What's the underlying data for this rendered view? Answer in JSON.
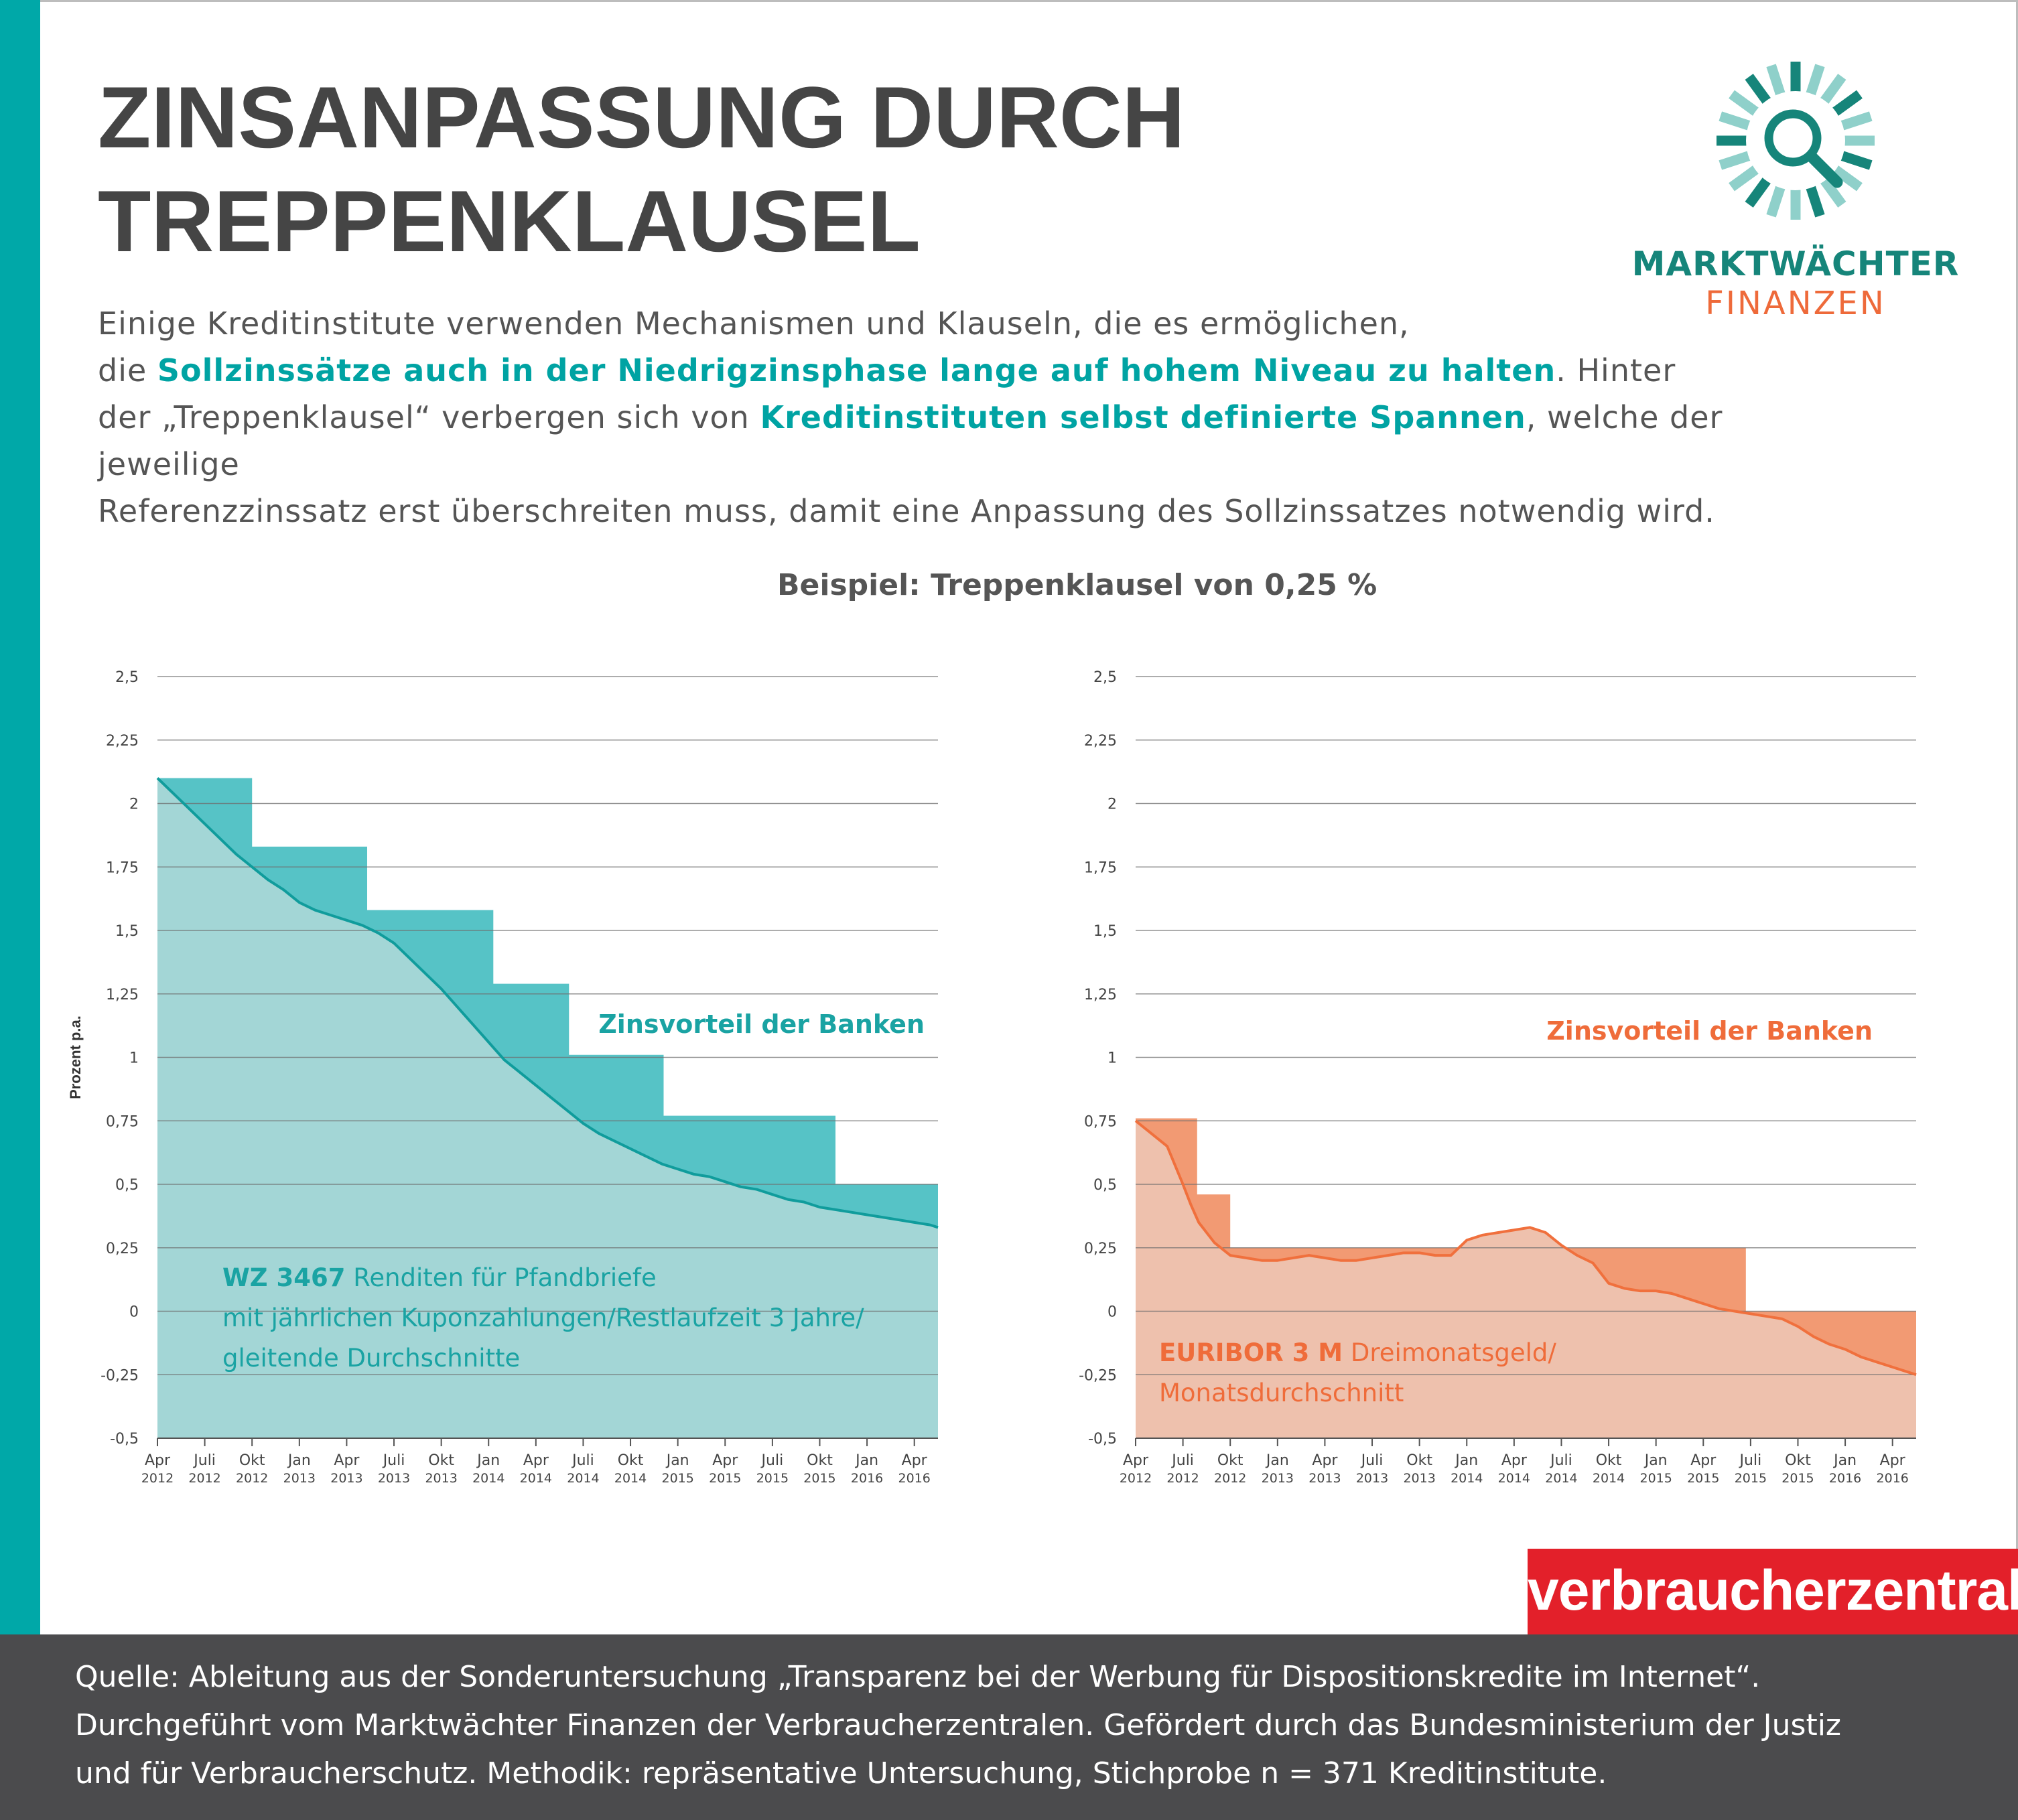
{
  "title": {
    "line1": "ZINSANPASSUNG DURCH",
    "line2": "TREPPENKLAUSEL"
  },
  "logo": {
    "line1": "MARKTWÄCHTER",
    "line2": "FINANZEN",
    "icon": "magnifier-sun-icon",
    "colors": {
      "teal": "#16857a",
      "light_teal": "#8fd0ca",
      "orange": "#ee6a3a"
    }
  },
  "intro": {
    "l1": "Einige Kreditinstitute verwenden Mechanismen und Klauseln, die es ermöglichen,",
    "l2_a": "die ",
    "l2_hl": "Sollzinssätze auch in der Niedrigzinsphase lange auf hohem Niveau zu halten",
    "l2_b": ". Hinter",
    "l3_a": "der „Treppenklausel“ verbergen sich von ",
    "l3_hl": "Kreditinstituten selbst definierte Spannen",
    "l3_b": ", welche der jeweilige",
    "l4": "Referenzzinssatz erst überschreiten muss, damit eine Anpassung des Sollzinssatzes notwendig wird."
  },
  "example_heading": "Beispiel: Treppenklausel von 0,25 %",
  "chart_data": [
    {
      "type": "area",
      "ylabel": "Prozent p.a.",
      "ylim": [
        -0.5,
        2.5
      ],
      "yticks": [
        -0.5,
        -0.25,
        0,
        0.25,
        0.5,
        0.75,
        1,
        1.25,
        1.5,
        1.75,
        2,
        2.25,
        2.5
      ],
      "ytick_labels": [
        "-0,5",
        "-0,25",
        "0",
        "0,25",
        "0,5",
        "0,75",
        "1",
        "1,25",
        "1,5",
        "1,75",
        "2",
        "2,25",
        "2,5"
      ],
      "xlim": [
        0,
        49.5
      ],
      "x_ticks": [
        0,
        3,
        6,
        9,
        12,
        15,
        18,
        21,
        24,
        27,
        30,
        33,
        36,
        39,
        42,
        45,
        48
      ],
      "x_tick_months": [
        "Apr",
        "Juli",
        "Okt",
        "Jan",
        "Apr",
        "Juli",
        "Okt",
        "Jan",
        "Apr",
        "Juli",
        "Okt",
        "Jan",
        "Apr",
        "Juli",
        "Okt",
        "Jan",
        "Apr"
      ],
      "x_tick_years": [
        "2012",
        "2012",
        "2012",
        "2013",
        "2013",
        "2013",
        "2013",
        "2014",
        "2014",
        "2014",
        "2014",
        "2015",
        "2015",
        "2015",
        "2015",
        "2016",
        "2016"
      ],
      "annotation": "Zinsvorteil der Banken",
      "series_label_bold": "WZ 3467",
      "series_label_lines": [
        " Renditen für Pfandbriefe",
        "mit jährlichen Kuponzahlungen/Restlaufzeit 3 Jahre/",
        "gleitende Durchschnitte"
      ],
      "colors": {
        "line": "#109c9c",
        "area": "#a3d6d6",
        "step": "#56c3c6",
        "text": "#1aa3a3"
      },
      "series": [
        {
          "name": "WZ 3467",
          "x": [
            0,
            1,
            2,
            3,
            4,
            5,
            6,
            7,
            8,
            9,
            10,
            11,
            12,
            13,
            14,
            15,
            16,
            17,
            18,
            19,
            20,
            21,
            22,
            23,
            24,
            25,
            26,
            27,
            28,
            29,
            30,
            31,
            32,
            33,
            34,
            35,
            36,
            37,
            38,
            39,
            40,
            41,
            42,
            43,
            44,
            45,
            46,
            47,
            48,
            49,
            49.5
          ],
          "values": [
            2.1,
            2.04,
            1.98,
            1.92,
            1.86,
            1.8,
            1.75,
            1.7,
            1.66,
            1.61,
            1.58,
            1.56,
            1.54,
            1.52,
            1.49,
            1.45,
            1.39,
            1.33,
            1.27,
            1.2,
            1.13,
            1.06,
            0.99,
            0.94,
            0.89,
            0.84,
            0.79,
            0.74,
            0.7,
            0.67,
            0.64,
            0.61,
            0.58,
            0.56,
            0.54,
            0.53,
            0.51,
            0.49,
            0.48,
            0.46,
            0.44,
            0.43,
            0.41,
            0.4,
            0.39,
            0.38,
            0.37,
            0.36,
            0.35,
            0.34,
            0.33
          ]
        },
        {
          "name": "Treppenklausel",
          "steps": [
            {
              "from": 0,
              "to": 6,
              "value": 2.1
            },
            {
              "from": 6,
              "to": 13.3,
              "value": 1.83
            },
            {
              "from": 13.3,
              "to": 21.3,
              "value": 1.58
            },
            {
              "from": 21.3,
              "to": 26.1,
              "value": 1.29
            },
            {
              "from": 26.1,
              "to": 32.1,
              "value": 1.01
            },
            {
              "from": 32.1,
              "to": 43,
              "value": 0.77
            },
            {
              "from": 43,
              "to": 49.5,
              "value": 0.5
            }
          ]
        }
      ]
    },
    {
      "type": "area",
      "ylabel": "",
      "ylim": [
        -0.5,
        2.5
      ],
      "yticks": [
        -0.5,
        -0.25,
        0,
        0.25,
        0.5,
        0.75,
        1,
        1.25,
        1.5,
        1.75,
        2,
        2.25,
        2.5
      ],
      "ytick_labels": [
        "-0,5",
        "-0,25",
        "0",
        "0,25",
        "0,5",
        "0,75",
        "1",
        "1,25",
        "1,5",
        "1,75",
        "2",
        "2,25",
        "2,5"
      ],
      "xlim": [
        0,
        49.5
      ],
      "x_ticks": [
        0,
        3,
        6,
        9,
        12,
        15,
        18,
        21,
        24,
        27,
        30,
        33,
        36,
        39,
        42,
        45,
        48
      ],
      "x_tick_months": [
        "Apr",
        "Juli",
        "Okt",
        "Jan",
        "Apr",
        "Juli",
        "Okt",
        "Jan",
        "Apr",
        "Juli",
        "Okt",
        "Jan",
        "Apr",
        "Juli",
        "Okt",
        "Jan",
        "Apr"
      ],
      "x_tick_years": [
        "2012",
        "2012",
        "2012",
        "2013",
        "2013",
        "2013",
        "2013",
        "2014",
        "2014",
        "2014",
        "2014",
        "2015",
        "2015",
        "2015",
        "2015",
        "2016",
        "2016"
      ],
      "annotation": "Zinsvorteil der Banken",
      "series_label_bold": "EURIBOR 3 M",
      "series_label_lines": [
        " Dreimonatsgeld/",
        "Monatsdurchschnitt"
      ],
      "colors": {
        "line": "#f0703d",
        "area": "#eec1ad",
        "step": "#f29a73",
        "text": "#ef6c3a"
      },
      "series": [
        {
          "name": "EURIBOR 3 M",
          "x": [
            0,
            1,
            2,
            3,
            3.5,
            4,
            5,
            6,
            7,
            8,
            9,
            10,
            11,
            12,
            13,
            14,
            15,
            16,
            17,
            18,
            19,
            20,
            21,
            22,
            23,
            24,
            25,
            26,
            27,
            28,
            29,
            29.5,
            30,
            31,
            32,
            33,
            34,
            35,
            36,
            37,
            38,
            39,
            40,
            41,
            42,
            43,
            44,
            45,
            46,
            47,
            48,
            49,
            49.5
          ],
          "values": [
            0.75,
            0.7,
            0.65,
            0.5,
            0.42,
            0.35,
            0.27,
            0.22,
            0.21,
            0.2,
            0.2,
            0.21,
            0.22,
            0.21,
            0.2,
            0.2,
            0.21,
            0.22,
            0.23,
            0.23,
            0.22,
            0.22,
            0.28,
            0.3,
            0.31,
            0.32,
            0.33,
            0.31,
            0.26,
            0.22,
            0.19,
            0.15,
            0.11,
            0.09,
            0.08,
            0.08,
            0.07,
            0.05,
            0.03,
            0.01,
            0.0,
            -0.01,
            -0.02,
            -0.03,
            -0.06,
            -0.1,
            -0.13,
            -0.15,
            -0.18,
            -0.2,
            -0.22,
            -0.24,
            -0.25
          ]
        },
        {
          "name": "Treppenklausel",
          "steps": [
            {
              "from": 0,
              "to": 3.9,
              "value": 0.76
            },
            {
              "from": 3.9,
              "to": 6,
              "value": 0.46
            },
            {
              "from": 6,
              "to": 38.7,
              "value": 0.25
            },
            {
              "from": 38.7,
              "to": 49.5,
              "value": 0.0
            }
          ]
        }
      ]
    }
  ],
  "vz_logo": "verbraucherzentrale",
  "footer": {
    "line1": "Quelle: Ableitung aus der Sonderuntersuchung „Transparenz bei der Werbung für Dispositionskredite im Internet“.",
    "line2": "Durchgeführt vom Marktwächter Finanzen der Verbraucherzentralen. Gefördert durch das Bundesministerium der Justiz",
    "line3": "und für Verbraucherschutz. Methodik: repräsentative Untersuchung, Stichprobe n = 371 Kreditinstitute."
  }
}
